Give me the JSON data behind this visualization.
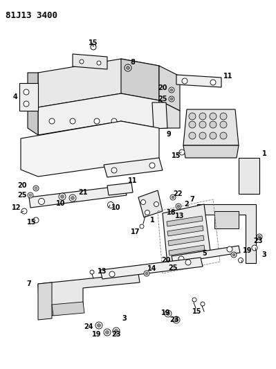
{
  "title": "81J13 3400",
  "bg_color": "#ffffff",
  "fig_width": 3.99,
  "fig_height": 5.33,
  "dpi": 100
}
